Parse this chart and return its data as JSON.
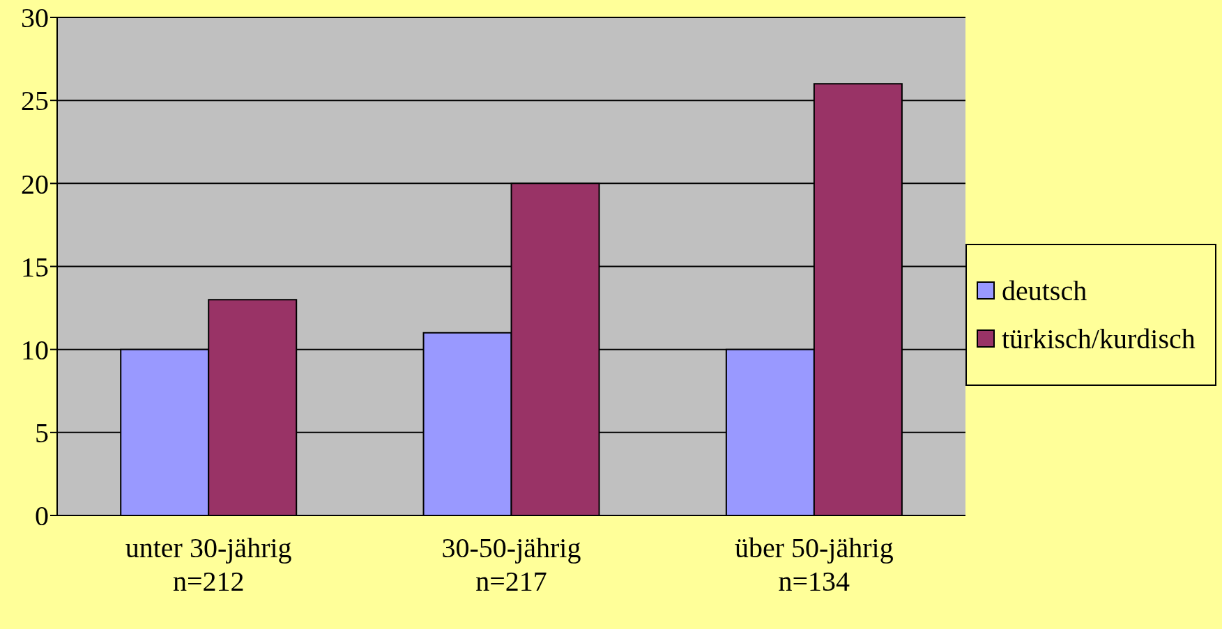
{
  "chart_data": {
    "type": "bar",
    "categories": [
      "unter 30-jährig\nn=212",
      "30-50-jährig\nn=217",
      "über 50-jährig\nn=134"
    ],
    "series": [
      {
        "name": "deutsch",
        "color": "#9999ff",
        "values": [
          10,
          11,
          10
        ]
      },
      {
        "name": "türkisch/kurdisch",
        "color": "#993366",
        "values": [
          13,
          20,
          26
        ]
      }
    ],
    "ylim": [
      0,
      30
    ],
    "yticks": [
      0,
      5,
      10,
      15,
      20,
      25,
      30
    ],
    "grid": "y",
    "legend": "right"
  }
}
